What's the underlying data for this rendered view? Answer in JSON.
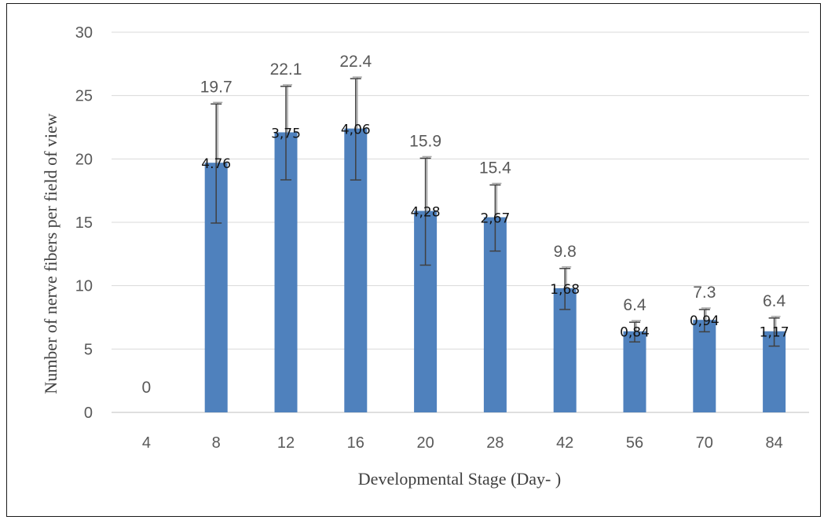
{
  "chart_data": {
    "type": "bar",
    "categories": [
      "4",
      "8",
      "12",
      "16",
      "20",
      "28",
      "42",
      "56",
      "70",
      "84"
    ],
    "values": [
      0,
      19.7,
      22.1,
      22.4,
      15.9,
      15.4,
      9.8,
      6.4,
      7.3,
      6.4
    ],
    "value_labels": [
      "0",
      "19.7",
      "22.1",
      "22.4",
      "15.9",
      "15.4",
      "9.8",
      "6.4",
      "7.3",
      "6.4"
    ],
    "error_values": [
      null,
      4.76,
      3.75,
      4.06,
      4.28,
      2.67,
      1.68,
      0.84,
      0.94,
      1.17
    ],
    "error_labels": [
      "",
      "4.76",
      "3,75",
      "4,06",
      "4,28",
      "2,67",
      "1,68",
      "0,84",
      "0,94",
      "1,17"
    ],
    "xlabel": "Developmental  Stage (Day- )",
    "ylabel": "Number of nerve fibers per field of view",
    "ylim": [
      0,
      30
    ],
    "yticks": [
      "0",
      "5",
      "10",
      "15",
      "20",
      "25",
      "30"
    ],
    "grid": true,
    "colors": {
      "bar": "#4f81bd",
      "grid": "#d9d9d9",
      "error_dark": "#404040",
      "error_light": "#a6a6a6"
    }
  }
}
